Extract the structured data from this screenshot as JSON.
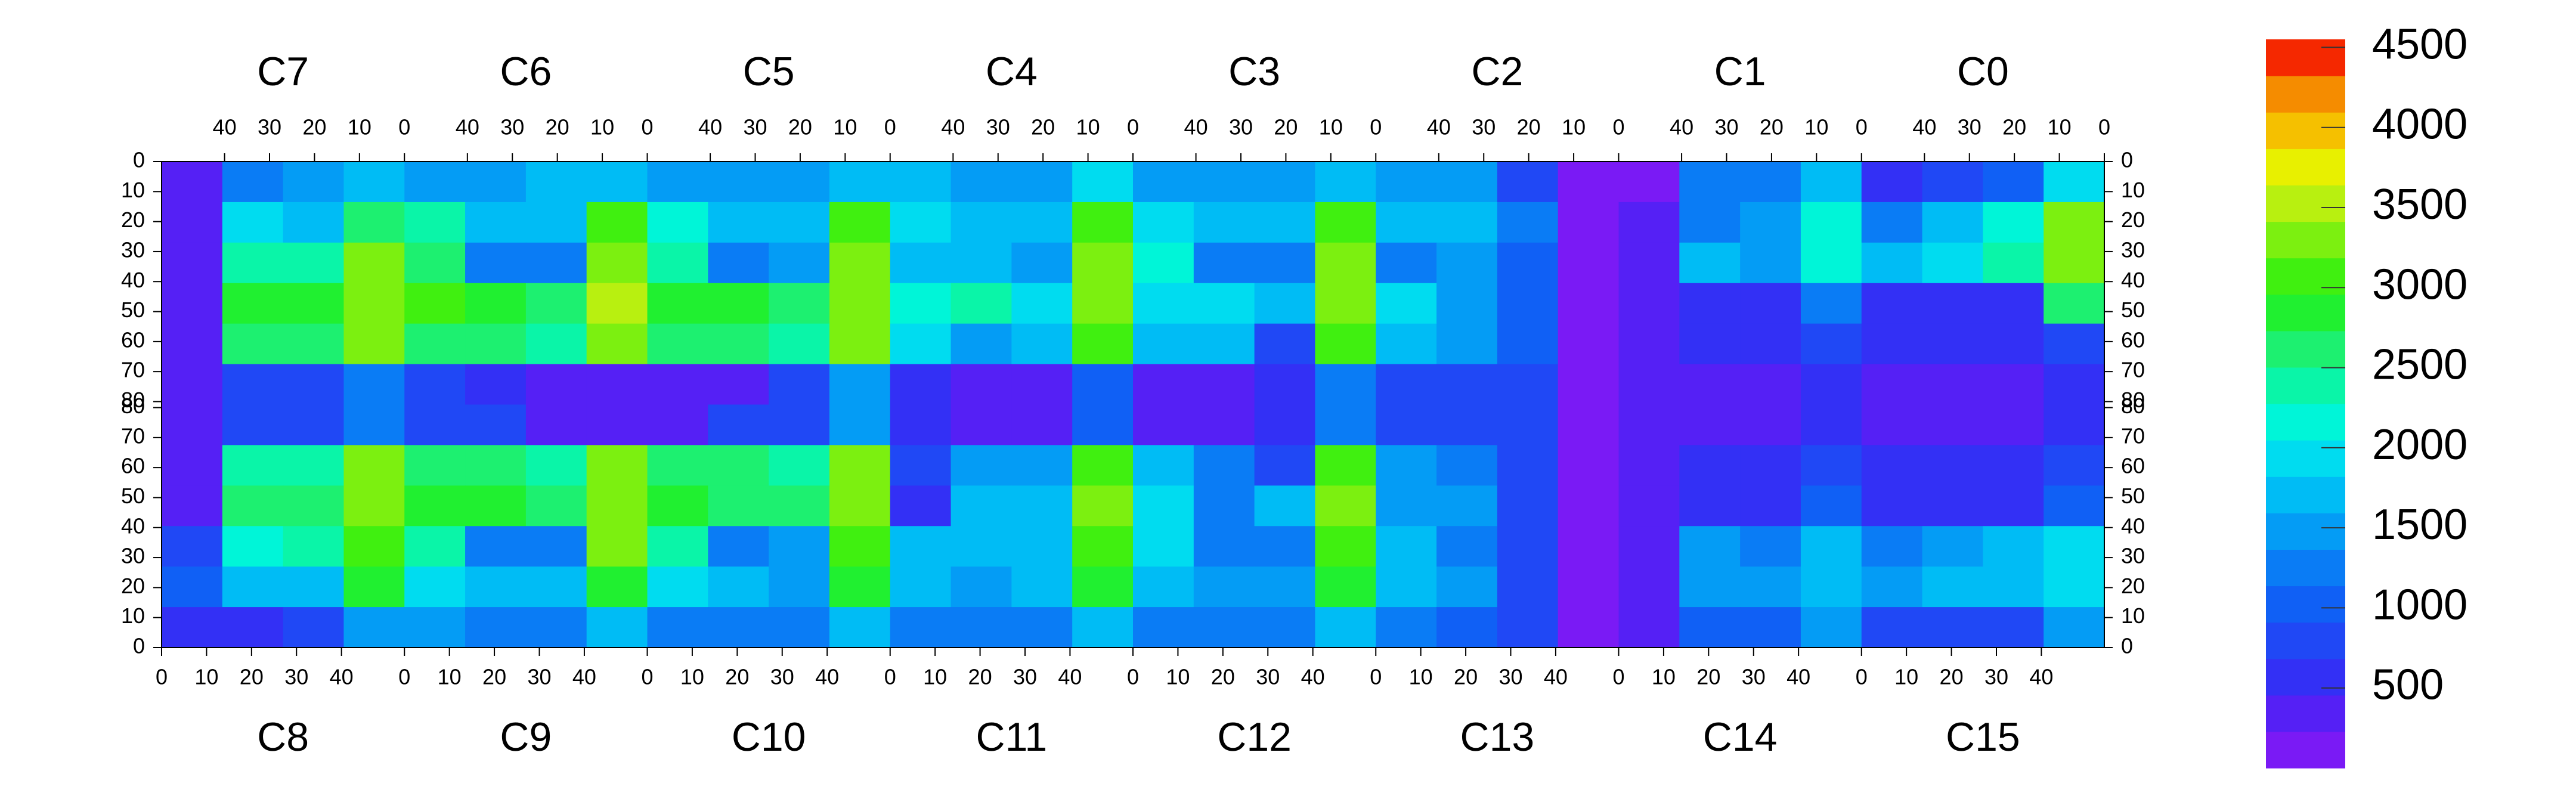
{
  "chart_data": {
    "type": "heatmap",
    "top_chips": [
      "C7",
      "C6",
      "C5",
      "C4",
      "C3",
      "C2",
      "C1",
      "C0"
    ],
    "bottom_chips": [
      "C8",
      "C9",
      "C10",
      "C11",
      "C12",
      "C13",
      "C14",
      "C15"
    ],
    "chip_xlim": [
      0,
      54
    ],
    "chip_xticks": [
      0,
      10,
      20,
      30,
      40
    ],
    "half_ylim": [
      0,
      81
    ],
    "yticks": [
      0,
      10,
      20,
      30,
      40,
      50,
      60,
      70,
      80
    ],
    "zlim": [
      0,
      4550
    ],
    "zticks": [
      500,
      1000,
      1500,
      2000,
      2500,
      3000,
      3500,
      4000,
      4500
    ],
    "palette": [
      "#7a1af5",
      "#5520f5",
      "#3330f5",
      "#2048f5",
      "#1060f5",
      "#0a7cf5",
      "#049cf5",
      "#00bcf5",
      "#00dcf0",
      "#00f5d8",
      "#0af5a8",
      "#1df070",
      "#20f030",
      "#40f010",
      "#7cf010",
      "#b8f010",
      "#e8f000",
      "#f5c000",
      "#f58c00",
      "#f52800"
    ],
    "z": [
      [
        300,
        1200,
        1500,
        1800,
        1500,
        1500,
        1600,
        1800,
        1500,
        1400,
        1500,
        1800,
        1600,
        1500,
        1500,
        1900,
        1500,
        1500,
        1500,
        1800,
        1500,
        1400,
        900,
        200,
        200,
        1200,
        1300,
        1600,
        600,
        900,
        1000,
        2000
      ],
      [
        300,
        2000,
        1800,
        2600,
        2400,
        1800,
        1800,
        3000,
        2200,
        1800,
        1800,
        3000,
        2000,
        1700,
        1700,
        3000,
        2000,
        1800,
        1800,
        3000,
        1800,
        1600,
        1200,
        200,
        300,
        1300,
        1500,
        2200,
        1200,
        1700,
        2200,
        3200
      ],
      [
        300,
        2400,
        2400,
        3200,
        2600,
        1200,
        1300,
        3200,
        2500,
        1300,
        1400,
        3200,
        1800,
        1600,
        1500,
        3200,
        2200,
        1200,
        1200,
        3200,
        1200,
        1400,
        1000,
        200,
        300,
        1600,
        1400,
        2200,
        1700,
        2000,
        2400,
        3300
      ],
      [
        300,
        2800,
        2800,
        3400,
        3000,
        2800,
        2700,
        3500,
        2800,
        2800,
        2700,
        3400,
        2200,
        2400,
        2000,
        3300,
        2000,
        1900,
        1800,
        3300,
        2000,
        1500,
        1000,
        200,
        300,
        600,
        500,
        1300,
        500,
        500,
        500,
        2600
      ],
      [
        300,
        2600,
        2600,
        3300,
        2700,
        2600,
        2500,
        3400,
        2600,
        2600,
        2500,
        3300,
        2000,
        1500,
        1800,
        3000,
        1800,
        1600,
        800,
        3000,
        1600,
        1500,
        1000,
        200,
        300,
        500,
        500,
        900,
        500,
        500,
        500,
        700
      ],
      [
        400,
        800,
        800,
        1200,
        900,
        600,
        300,
        400,
        300,
        400,
        800,
        1400,
        600,
        400,
        300,
        1100,
        400,
        400,
        600,
        1300,
        900,
        900,
        900,
        200,
        300,
        400,
        400,
        500,
        400,
        400,
        400,
        500
      ],
      [
        400,
        700,
        800,
        1200,
        900,
        700,
        300,
        300,
        300,
        800,
        800,
        1400,
        600,
        400,
        300,
        1100,
        300,
        300,
        500,
        1200,
        900,
        900,
        900,
        200,
        300,
        400,
        400,
        500,
        400,
        400,
        400,
        500
      ],
      [
        300,
        2400,
        2500,
        3300,
        2600,
        2600,
        2500,
        3300,
        2600,
        2600,
        2500,
        3300,
        700,
        1500,
        1500,
        3000,
        1800,
        1300,
        800,
        3000,
        1500,
        1300,
        900,
        200,
        300,
        500,
        500,
        800,
        500,
        500,
        500,
        700
      ],
      [
        300,
        2700,
        2700,
        3300,
        2800,
        2800,
        2700,
        3400,
        2800,
        2700,
        2700,
        3400,
        600,
        1800,
        1700,
        3200,
        2000,
        1200,
        1800,
        3200,
        1400,
        1500,
        900,
        200,
        300,
        500,
        500,
        1000,
        500,
        500,
        500,
        1000
      ],
      [
        700,
        2200,
        2300,
        3100,
        2500,
        1300,
        1200,
        3200,
        2300,
        1300,
        1400,
        3100,
        1800,
        1600,
        1700,
        3100,
        1900,
        1200,
        1300,
        3100,
        1600,
        1300,
        900,
        200,
        400,
        1400,
        1200,
        1600,
        1300,
        1500,
        1600,
        2000
      ],
      [
        1000,
        1700,
        1800,
        2800,
        2000,
        1600,
        1600,
        2900,
        2000,
        1600,
        1500,
        2900,
        1700,
        1500,
        1600,
        2900,
        1700,
        1500,
        1500,
        2900,
        1600,
        1400,
        900,
        200,
        400,
        1500,
        1400,
        1800,
        1400,
        1600,
        1600,
        2000
      ],
      [
        500,
        600,
        700,
        1500,
        1400,
        1300,
        1300,
        1600,
        1300,
        1300,
        1300,
        1600,
        1300,
        1300,
        1300,
        1600,
        1300,
        1300,
        1300,
        1600,
        1200,
        1100,
        800,
        200,
        300,
        1100,
        1100,
        1400,
        900,
        800,
        800,
        1500
      ]
    ]
  }
}
